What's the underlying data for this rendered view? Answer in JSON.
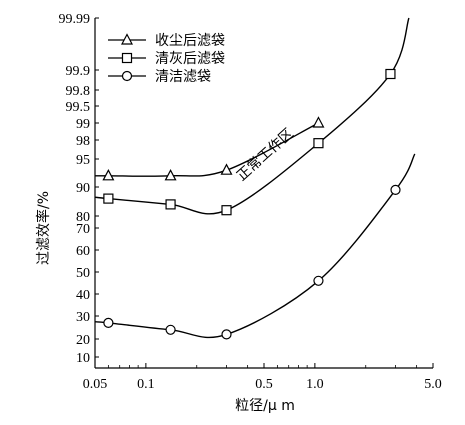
{
  "chart_data": {
    "type": "line",
    "title": "",
    "xlabel": "粒径/μ m",
    "ylabel": "过滤效率/%",
    "x_scale": "log",
    "y_scale": "probability",
    "xlim": [
      0.05,
      5.0
    ],
    "ylim": [
      10,
      99.99
    ],
    "x_ticks": [
      0.05,
      0.1,
      0.5,
      1.0,
      5.0
    ],
    "x_tick_labels": [
      "0.05",
      "0.1",
      "0.5",
      "1.0",
      "5.0"
    ],
    "y_ticks": [
      10,
      20,
      30,
      40,
      50,
      60,
      70,
      80,
      90,
      95,
      98,
      99,
      99.5,
      99.8,
      99.9,
      99.99
    ],
    "y_tick_labels": [
      "10",
      "20",
      "30",
      "40",
      "50",
      "60",
      "70",
      "80",
      "90",
      "95",
      "98",
      "99",
      "99.5",
      "99.8",
      "99.9",
      "99.99"
    ],
    "grid": false,
    "legend_position": "top-left",
    "series": [
      {
        "name": "收尘后滤袋",
        "marker": "triangle",
        "x": [
          0.06,
          0.14,
          0.3,
          1.05
        ],
        "y": [
          92.0,
          92.0,
          93.0,
          99.0
        ]
      },
      {
        "name": "清灰后滤袋",
        "marker": "square",
        "x": [
          0.06,
          0.14,
          0.3,
          1.05,
          2.8
        ],
        "y": [
          86.0,
          84.0,
          82.0,
          97.5,
          99.88
        ]
      },
      {
        "name": "清洁滤袋",
        "marker": "circle",
        "x": [
          0.06,
          0.14,
          0.3,
          1.05,
          3.0
        ],
        "y": [
          27.0,
          24.0,
          22.0,
          46.0,
          89.0
        ]
      }
    ],
    "annotations": [
      {
        "text": "正常工作区"
      }
    ]
  }
}
